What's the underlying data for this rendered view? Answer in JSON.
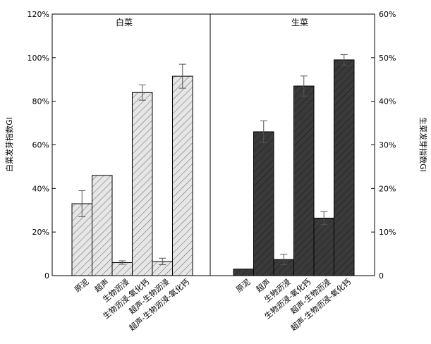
{
  "chart_data": [
    {
      "type": "bar",
      "title": "白菜",
      "ylabel": "白菜发芽指数GI",
      "ylim": [
        0,
        120
      ],
      "y_ticks": [
        "0",
        "20%",
        "40%",
        "60%",
        "80%",
        "100%",
        "120%"
      ],
      "categories": [
        "原泥",
        "超声",
        "生物沥浸",
        "生物沥浸-氧化钙",
        "超声-生物沥浸",
        "超声-生物沥浸-氧化钙"
      ],
      "values": [
        33,
        46,
        6,
        84,
        6.5,
        91.5
      ],
      "errors": [
        6,
        0,
        0.8,
        3.5,
        1.5,
        5.5
      ],
      "fill": "#e6e6e6",
      "hatch": "#555555"
    },
    {
      "type": "bar",
      "title": "生菜",
      "ylabel": "生菜发芽指数GI",
      "ylim": [
        0,
        60
      ],
      "y_ticks": [
        "0",
        "10%",
        "20%",
        "30%",
        "40%",
        "50%",
        "60%"
      ],
      "categories": [
        "原泥",
        "超声",
        "生物沥浸",
        "生物沥浸-氧化钙",
        "超声-生物沥浸",
        "超声-生物沥浸-氧化钙"
      ],
      "values": [
        1.5,
        33,
        3.7,
        43.5,
        13.2,
        49.5
      ],
      "errors": [
        0,
        2.5,
        1.2,
        2.3,
        1.5,
        1.2
      ],
      "fill": "#3a3a3a",
      "hatch": "#1a1a1a"
    }
  ]
}
